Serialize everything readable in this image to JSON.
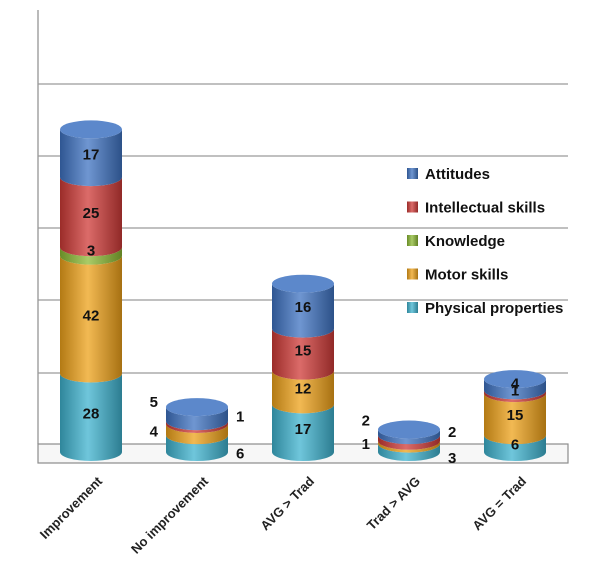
{
  "chart_data": {
    "type": "bar",
    "stacked": true,
    "title": "",
    "xlabel": "",
    "ylabel": "",
    "grid": true,
    "legend_position": "right",
    "categories": [
      "Improvement",
      "No improvement",
      "AVG > Trad",
      "Trad > AVG",
      "AVG = Trad"
    ],
    "series": [
      {
        "name": "Physical properties",
        "color": "#3fb3cf",
        "values": [
          28,
          6,
          17,
          3,
          6
        ]
      },
      {
        "name": "Motor skills",
        "color": "#eea21a",
        "values": [
          42,
          4,
          12,
          1,
          15
        ]
      },
      {
        "name": "Knowledge",
        "color": "#8cba34",
        "values": [
          3,
          0,
          0,
          0,
          0
        ]
      },
      {
        "name": "Intellectual skills",
        "color": "#cf3a37",
        "values": [
          25,
          1,
          15,
          2,
          1
        ]
      },
      {
        "name": "Attitudes",
        "color": "#3f73c2",
        "values": [
          17,
          5,
          16,
          2,
          4
        ]
      }
    ]
  }
}
